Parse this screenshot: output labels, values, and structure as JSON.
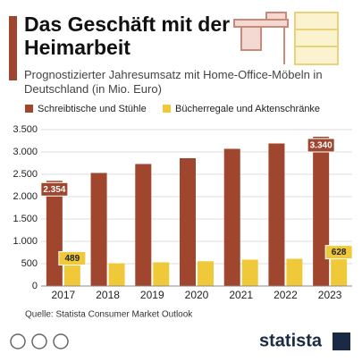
{
  "chart_data": {
    "type": "bar",
    "title": "Das Geschäft mit der Heimarbeit",
    "subtitle": "Prognostizierter Jahresumsatz mit Home-Office-Möbeln in Deutschland (in Mio. Euro)",
    "source": "Quelle: Statista Consumer Market Outlook",
    "logo": "statista",
    "categories": [
      "2017",
      "2018",
      "2019",
      "2020",
      "2021",
      "2022",
      "2023"
    ],
    "series": [
      {
        "name": "Schreibtische und Stühle",
        "color": "#a0452e",
        "values": [
          2354,
          2530,
          2730,
          2860,
          3070,
          3190,
          3340
        ],
        "value_labels": [
          "2.354",
          null,
          null,
          null,
          null,
          null,
          "3.340"
        ]
      },
      {
        "name": "Bücherregale und Aktenschränke",
        "color": "#f0c93a",
        "values": [
          489,
          510,
          530,
          555,
          590,
          610,
          628
        ],
        "value_labels": [
          "489",
          null,
          null,
          null,
          null,
          null,
          "628"
        ]
      }
    ],
    "ylim": [
      0,
      3500
    ],
    "yticks": [
      0,
      500,
      {
        "value": 1000,
        "label": "1.000"
      },
      {
        "value": 1500,
        "label": "1.500"
      },
      {
        "value": 2000,
        "label": "2.000"
      },
      {
        "value": 2500,
        "label": "2.500"
      },
      {
        "value": 3000,
        "label": "3.000"
      },
      {
        "value": 3500,
        "label": "3.500"
      }
    ],
    "grid": true
  }
}
